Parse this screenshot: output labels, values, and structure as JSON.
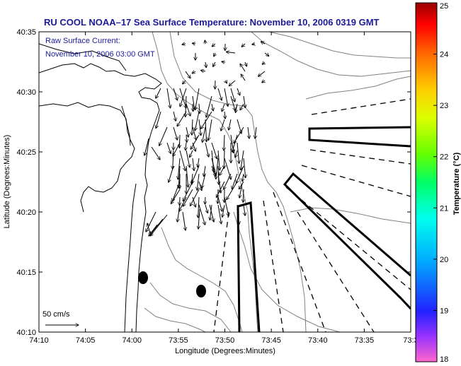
{
  "title": "RU COOL  NOAA–17  Sea Surface Temperature:  November 10, 2006 0319 GMT",
  "current_label": "Raw Surface Current:",
  "current_time": "November 10, 2006 03:00 GMT",
  "scale_label": "50 cm/s",
  "xlabel": "Longitude (Degrees:Minutes)",
  "ylabel": "Latitude (Degrees:Minutes)",
  "colorbar_label": "Temperature (°C)",
  "x_ticks": [
    "74:10",
    "74:05",
    "74:00",
    "73:55",
    "73:50",
    "73:45",
    "73:40",
    "73:35",
    "73:3"
  ],
  "y_ticks": [
    "40:35",
    "40:30",
    "40:25",
    "40:20",
    "40:15",
    "40:10"
  ],
  "colorbar_ticks": [
    "25",
    "24",
    "23",
    "22",
    "21",
    "20",
    "19",
    "18"
  ],
  "colorbar_range": [
    18,
    25
  ],
  "colorbar_colors": [
    "#ff66cc",
    "#9933ff",
    "#2222ff",
    "#00aaff",
    "#00ffee",
    "#00ff66",
    "#66ff00",
    "#ddff00",
    "#ffcc00",
    "#ff6600",
    "#ff0000",
    "#990000"
  ],
  "colors": {
    "title": "#1a1a9a",
    "contour": "#808080",
    "frame": "#000000"
  }
}
